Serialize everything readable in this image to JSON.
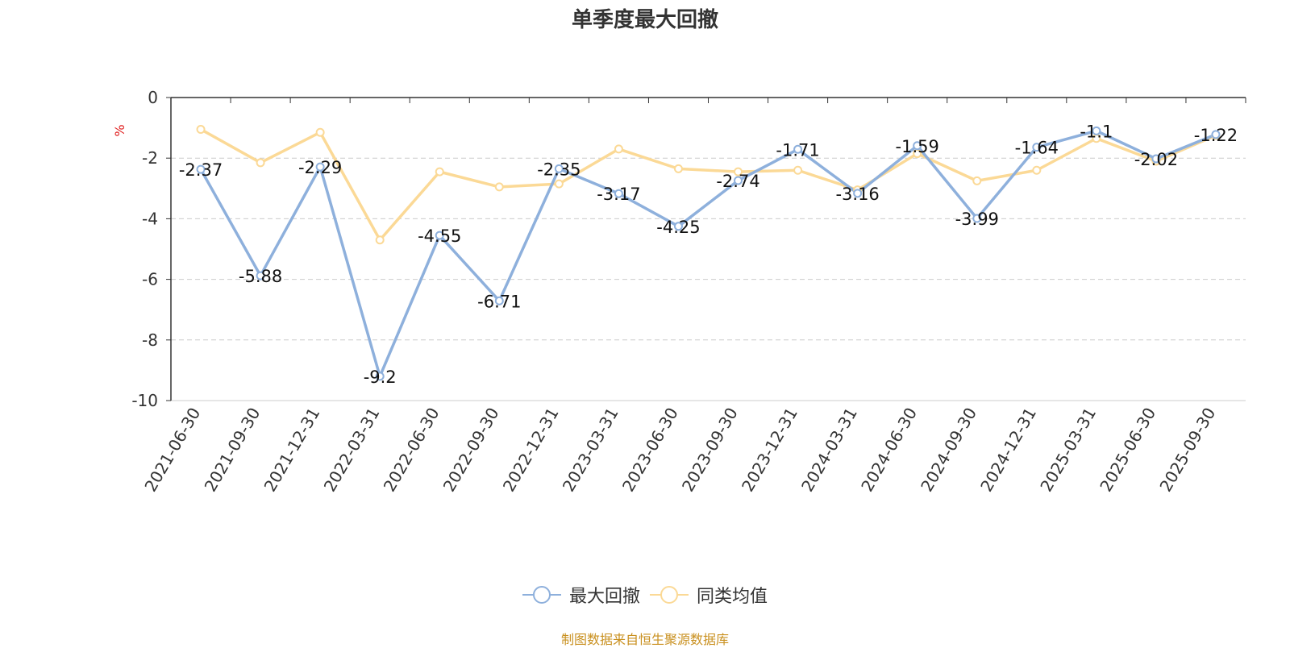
{
  "chart_data": {
    "type": "line",
    "title": "单季度最大回撤",
    "ylabel": "%",
    "ylim": [
      -10,
      0
    ],
    "yticks": [
      0,
      -2,
      -4,
      -6,
      -8,
      -10
    ],
    "categories": [
      "2021-06-30",
      "2021-09-30",
      "2021-12-31",
      "2022-03-31",
      "2022-06-30",
      "2022-09-30",
      "2022-12-31",
      "2023-03-31",
      "2023-06-30",
      "2023-09-30",
      "2023-12-31",
      "2024-03-31",
      "2024-06-30",
      "2024-09-30",
      "2024-12-31",
      "2025-03-31",
      "2025-06-30",
      "2025-09-30"
    ],
    "series": [
      {
        "name": "最大回撤",
        "color": "#8eb0dc",
        "labels_shown": true,
        "values": [
          -2.37,
          -5.88,
          -2.29,
          -9.2,
          -4.55,
          -6.71,
          -2.35,
          -3.17,
          -4.25,
          -2.74,
          -1.71,
          -3.16,
          -1.59,
          -3.99,
          -1.64,
          -1.1,
          -2.02,
          -1.22
        ]
      },
      {
        "name": "同类均值",
        "color": "#fbd996",
        "labels_shown": false,
        "values": [
          -1.05,
          -2.15,
          -1.15,
          -4.7,
          -2.45,
          -2.95,
          -2.85,
          -1.7,
          -2.35,
          -2.45,
          -2.4,
          -3.05,
          -1.85,
          -2.75,
          -2.4,
          -1.35,
          -2.1,
          -1.25
        ]
      }
    ],
    "grid": "dashed-horizontal",
    "legend_position": "bottom",
    "source_note": "制图数据来自恒生聚源数据库"
  }
}
